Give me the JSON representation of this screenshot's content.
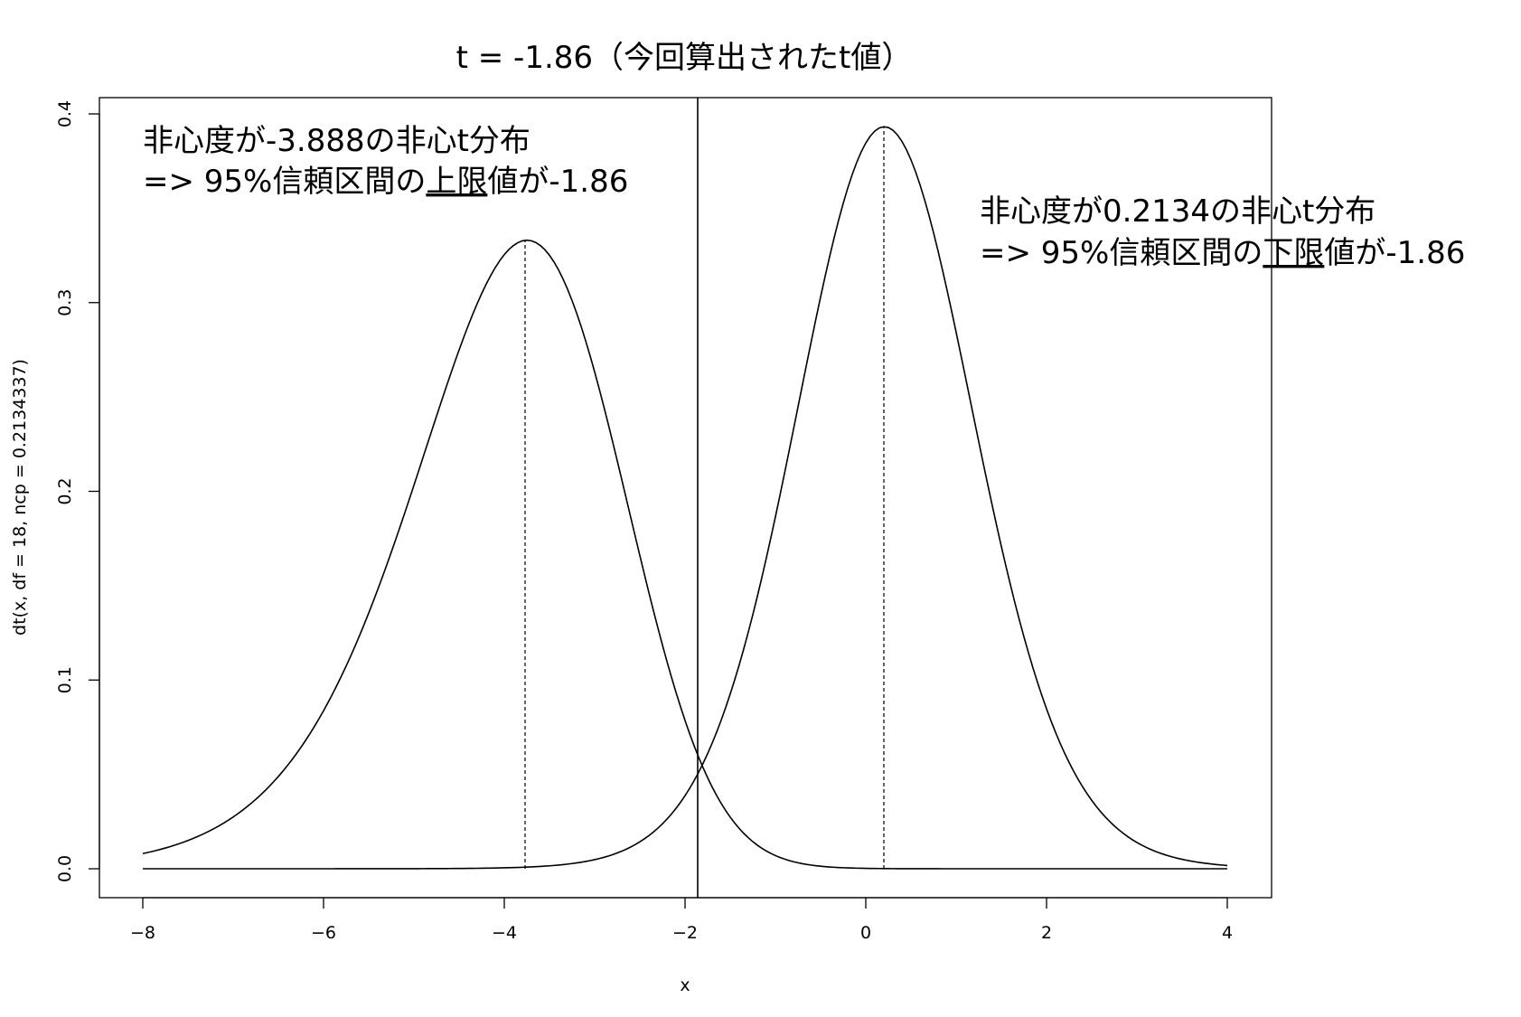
{
  "chart_data": {
    "type": "line",
    "title": "t = -1.86（今回算出されたt値）",
    "xlabel": "x",
    "ylabel": "dt(x, df = 18, ncp = 0.2134337)",
    "xlim": [
      -8,
      4
    ],
    "ylim": [
      0,
      0.4
    ],
    "x_ticks": [
      -8,
      -6,
      -4,
      -2,
      0,
      2,
      4
    ],
    "x_tick_labels": [
      "−8",
      "−6",
      "−4",
      "−2",
      "0",
      "2",
      "4"
    ],
    "y_ticks": [
      0.0,
      0.1,
      0.2,
      0.3,
      0.4
    ],
    "y_tick_labels": [
      "0.0",
      "0.1",
      "0.2",
      "0.3",
      "0.4"
    ],
    "grid": false,
    "df": 18,
    "observed_t": -1.86,
    "series": [
      {
        "ncp": -3.888,
        "mode": -3.77,
        "peak": 0.333
      },
      {
        "ncp": 0.2134337,
        "mode": 0.2,
        "peak": 0.393
      }
    ],
    "annotations": [
      {
        "line1": "非心度が-3.888の非心t分布",
        "line2_prefix": "=> 95%信頼区間の",
        "line2_emph": "上限",
        "line2_suffix": "値が-1.86"
      },
      {
        "line1": "非心度が0.2134の非心t分布",
        "line2_prefix": "=> 95%信頼区間の",
        "line2_emph": "下限",
        "line2_suffix": "値が-1.86"
      }
    ]
  }
}
